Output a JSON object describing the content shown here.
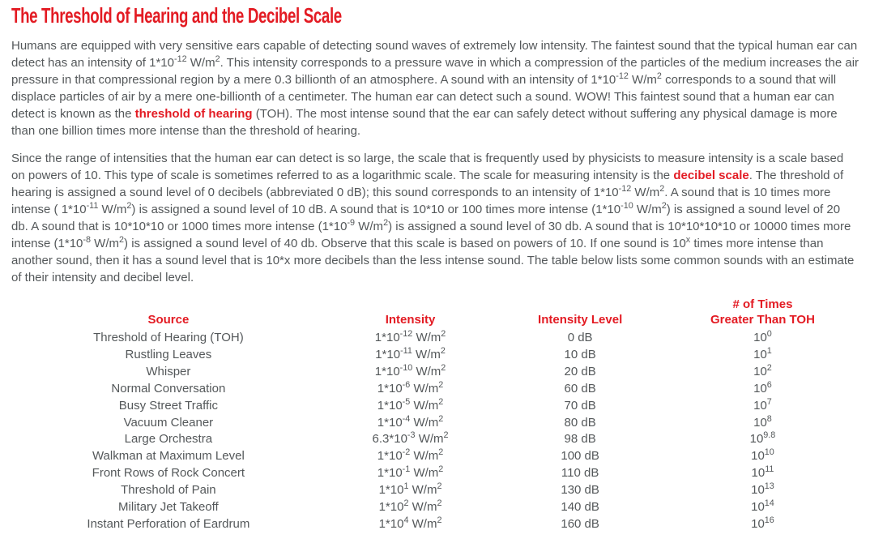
{
  "colors": {
    "accent_red": "#e31b23",
    "body_text": "#54585a",
    "background": "#ffffff"
  },
  "header": {
    "title": "The Threshold of Hearing and the Decibel Scale"
  },
  "article": {
    "paragraphs": [
      "Humans are equipped with very sensitive ears capable of detecting sound waves of extremely low intensity. The faintest sound that the typical human ear can detect has an intensity of 1*10^{-12} W/m^{2}. This intensity corresponds to a pressure wave in which a compression of the particles of the medium increases the air pressure in that compressional region by a mere 0.3 billionth of an atmosphere. A sound with an intensity of 1*10^{-12} W/m^{2} corresponds to a sound that will displace particles of air by a mere one-billionth of a centimeter. The human ear can detect such a sound. WOW! This faintest sound that a human ear can detect is known as the **threshold of hearing** (TOH). The most intense sound that the ear can safely detect without suffering any physical damage is more than one billion times more intense than the threshold of hearing.",
      "Since the range of intensities that the human ear can detect is so large, the scale that is frequently used by physicists to measure intensity is a scale based on powers of 10. This type of scale is sometimes referred to as a logarithmic scale. The scale for measuring intensity is the **decibel scale**. The threshold of hearing is assigned a sound level of 0 decibels (abbreviated 0 dB); this sound corresponds to an intensity of 1*10^{-12} W/m^{2}. A sound that is 10 times more intense ( 1*10^{-11} W/m^{2}) is assigned a sound level of 10 dB. A sound that is 10*10 or 100 times more intense (1*10^{-10} W/m^{2}) is assigned a sound level of 20 db. A sound that is 10*10*10 or 1000 times more intense (1*10^{-9} W/m^{2}) is assigned a sound level of 30 db. A sound that is 10*10*10*10 or 10000 times more intense (1*10^{-8} W/m^{2}) is assigned a sound level of 40 db. Observe that this scale is based on powers of 10. If one sound is 10^{x} times more intense than another sound, then it has a sound level that is 10*x more decibels than the less intense sound. The table below lists some common sounds with an estimate of their intensity and decibel level."
    ]
  },
  "table": {
    "headers": [
      "Source",
      "Intensity",
      "Intensity Level",
      "# of Times\nGreater Than TOH"
    ],
    "rows": [
      {
        "source": "Threshold of Hearing (TOH)",
        "intensity": "1*10^{-12} W/m^{2}",
        "level": "0 dB",
        "times": "10^{0}"
      },
      {
        "source": "Rustling Leaves",
        "intensity": "1*10^{-11} W/m^{2}",
        "level": "10 dB",
        "times": "10^{1}"
      },
      {
        "source": "Whisper",
        "intensity": "1*10^{-10} W/m^{2}",
        "level": "20 dB",
        "times": "10^{2}"
      },
      {
        "source": "Normal Conversation",
        "intensity": "1*10^{-6} W/m^{2}",
        "level": "60 dB",
        "times": "10^{6}"
      },
      {
        "source": "Busy Street Traffic",
        "intensity": "1*10^{-5} W/m^{2}",
        "level": "70 dB",
        "times": "10^{7}"
      },
      {
        "source": "Vacuum Cleaner",
        "intensity": "1*10^{-4} W/m^{2}",
        "level": "80 dB",
        "times": "10^{8}"
      },
      {
        "source": "Large Orchestra",
        "intensity": "6.3*10^{-3} W/m^{2}",
        "level": "98 dB",
        "times": "10^{9.8}"
      },
      {
        "source": "Walkman at Maximum Level",
        "intensity": "1*10^{-2} W/m^{2}",
        "level": "100 dB",
        "times": "10^{10}"
      },
      {
        "source": "Front Rows of Rock Concert",
        "intensity": "1*10^{-1} W/m^{2}",
        "level": "110 dB",
        "times": "10^{11}"
      },
      {
        "source": "Threshold of Pain",
        "intensity": "1*10^{1} W/m^{2}",
        "level": "130 dB",
        "times": "10^{13}"
      },
      {
        "source": "Military Jet Takeoff",
        "intensity": "1*10^{2} W/m^{2}",
        "level": "140 dB",
        "times": "10^{14}"
      },
      {
        "source": "Instant Perforation of Eardrum",
        "intensity": "1*10^{4} W/m^{2}",
        "level": "160 dB",
        "times": "10^{16}"
      }
    ]
  }
}
